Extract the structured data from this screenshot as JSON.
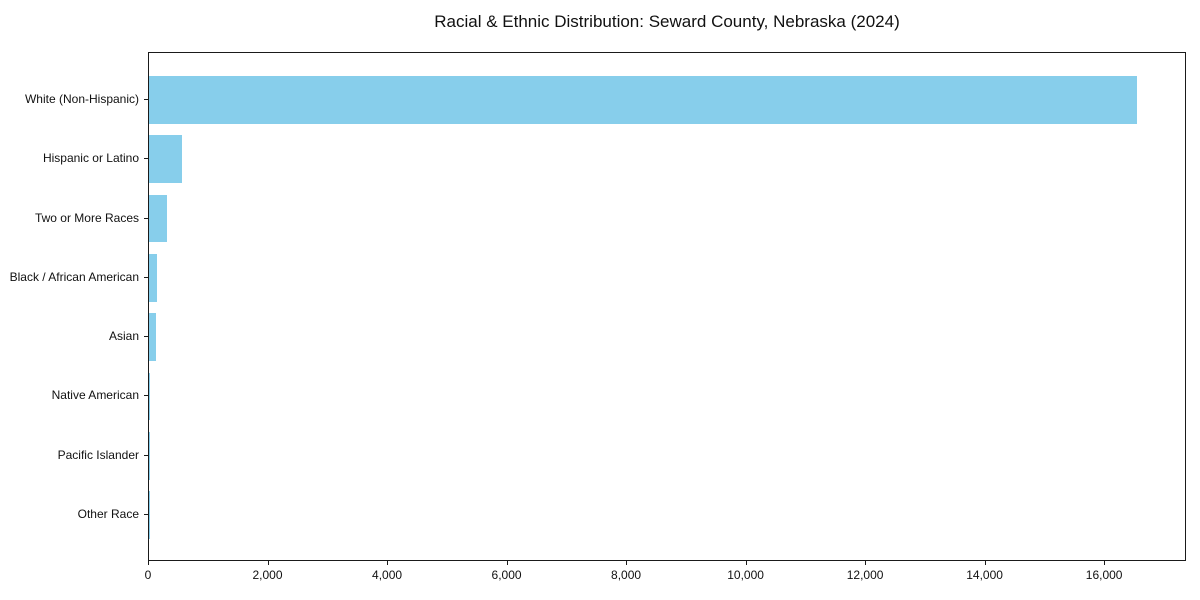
{
  "chart_data": {
    "type": "bar",
    "orientation": "horizontal",
    "title": "Racial & Ethnic Distribution: Seward County, Nebraska (2024)",
    "categories": [
      "White (Non-Hispanic)",
      "Hispanic or Latino",
      "Two or More Races",
      "Black / African American",
      "Asian",
      "Native American",
      "Pacific Islander",
      "Other Race"
    ],
    "values": [
      16540,
      560,
      305,
      135,
      110,
      25,
      10,
      5
    ],
    "xlabel": "",
    "ylabel": "",
    "xlim": [
      0,
      17370
    ],
    "x_ticks": [
      0,
      2000,
      4000,
      6000,
      8000,
      10000,
      12000,
      14000,
      16000
    ],
    "x_tick_labels": [
      "0",
      "2,000",
      "4,000",
      "6,000",
      "8,000",
      "10,000",
      "12,000",
      "14,000",
      "16,000"
    ],
    "grid": false,
    "legend": null,
    "bar_color": "#87CEEB",
    "axis_color": "#1a1a1a",
    "text_color": "#111111",
    "background_color": "#ffffff"
  }
}
